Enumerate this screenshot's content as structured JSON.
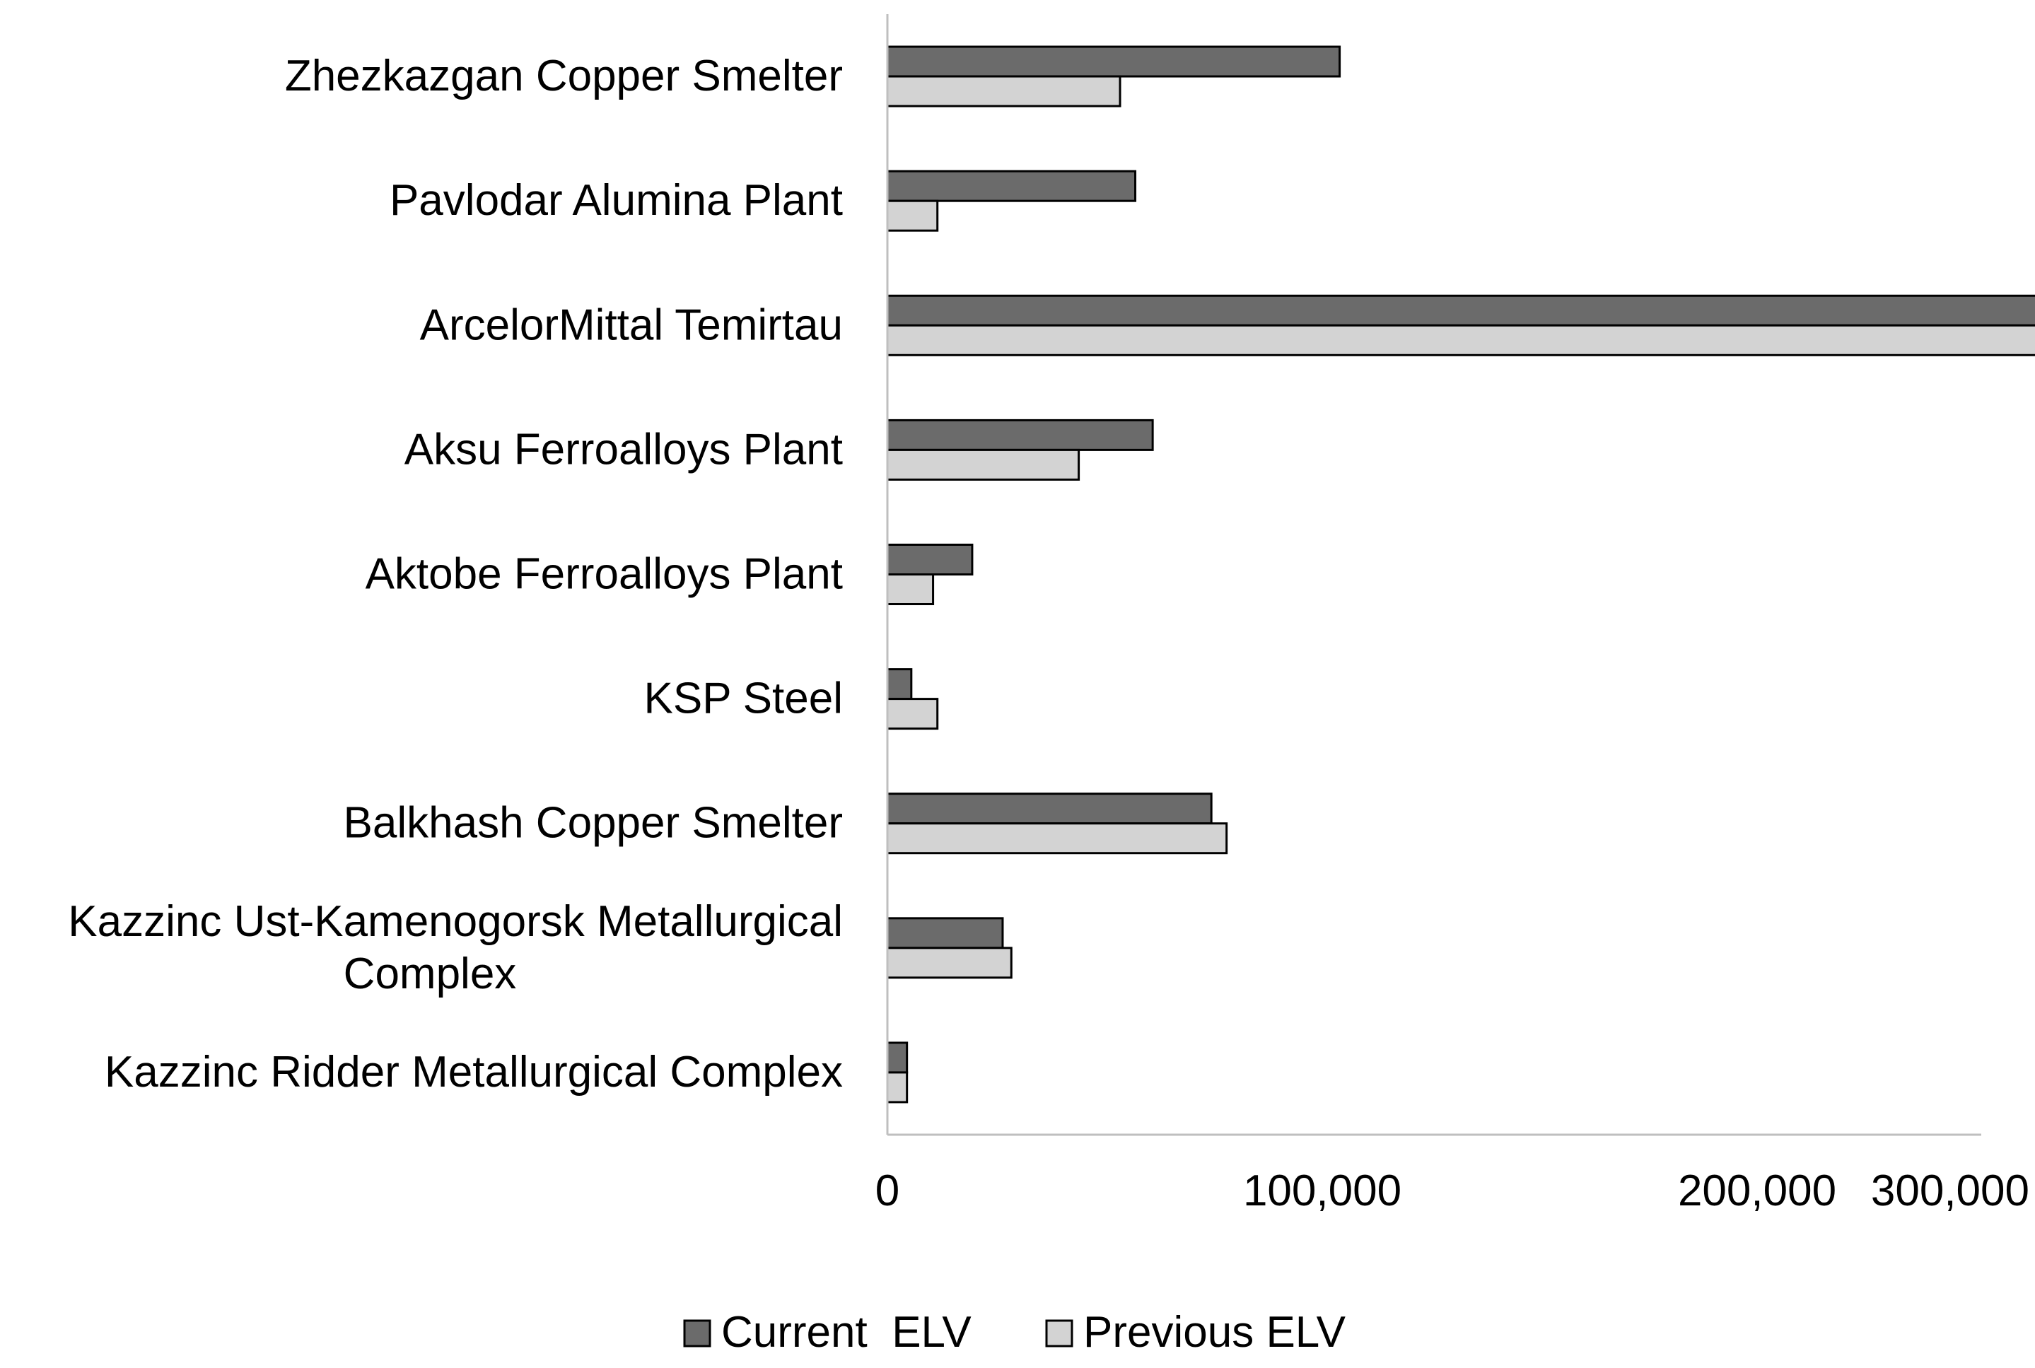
{
  "chart_data": {
    "type": "bar",
    "orientation": "horizontal",
    "title": "",
    "xlabel": "",
    "ylabel": "",
    "xlim": [
      0,
      300000
    ],
    "xticks": [
      0,
      100000,
      200000,
      300000
    ],
    "xtick_labels": [
      "0",
      "100,000",
      "200,000",
      "300,000"
    ],
    "grid": false,
    "legend_position": "bottom",
    "categories": [
      [
        "Zhezkazgan Copper Smelter"
      ],
      [
        "Pavlodar Alumina Plant"
      ],
      [
        "ArcelorMittal Temirtau"
      ],
      [
        "Aksu Ferroalloys Plant"
      ],
      [
        "Aktobe Ferroalloys Plant"
      ],
      [
        "KSP Steel"
      ],
      [
        "Balkhash Copper Smelter"
      ],
      [
        "Kazzinc Ust-Kamenogorsk Metallurgical",
        "Complex"
      ],
      [
        "Kazzinc Ridder Metallurgical Complex"
      ]
    ],
    "series": [
      {
        "name": "Current  ELV",
        "color": "#6b6b6b",
        "values": [
          104000,
          57000,
          300000,
          61000,
          19500,
          5500,
          74500,
          26500,
          4500
        ]
      },
      {
        "name": "Previous ELV",
        "color": "#d3d3d3",
        "values": [
          53500,
          11500,
          278500,
          44000,
          10500,
          11500,
          78000,
          28500,
          4500
        ]
      }
    ]
  }
}
